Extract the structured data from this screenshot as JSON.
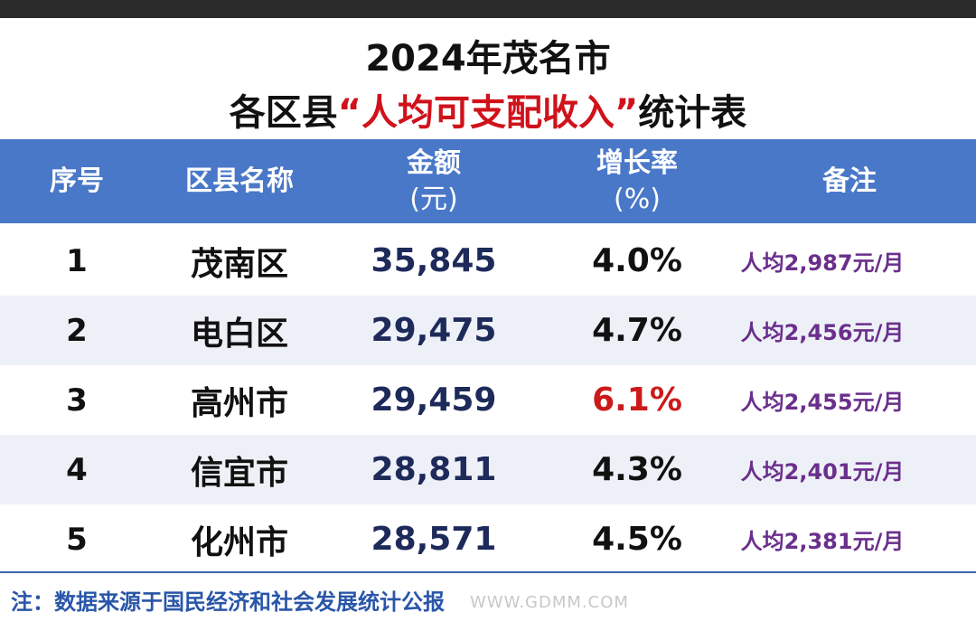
{
  "title": {
    "line1": "2024年茂名市",
    "line2_pre": "各区县",
    "line2_highlight": "“人均可支配收入”",
    "line2_post": "统计表"
  },
  "headers": {
    "no": "序号",
    "name": "区县名称",
    "amount_line1": "金额",
    "amount_line2": "(元)",
    "rate_line1": "增长率",
    "rate_line2": "(%)",
    "note": "备注"
  },
  "rows": [
    {
      "no": "1",
      "name": "茂南区",
      "amount": "35,845",
      "rate": "4.0%",
      "note": "人均2,987元/月"
    },
    {
      "no": "2",
      "name": "电白区",
      "amount": "29,475",
      "rate": "4.7%",
      "note": "人均2,456元/月"
    },
    {
      "no": "3",
      "name": "高州市",
      "amount": "29,459",
      "rate": "6.1%",
      "note": "人均2,455元/月"
    },
    {
      "no": "4",
      "name": "信宜市",
      "amount": "28,811",
      "rate": "4.3%",
      "note": "人均2,401元/月"
    },
    {
      "no": "5",
      "name": "化州市",
      "amount": "28,571",
      "rate": "4.5%",
      "note": "人均2,381元/月"
    }
  ],
  "footnote": "注：数据来源于国民经济和社会发展统计公报",
  "watermark": "WWW.GDMM.COM",
  "colors": {
    "header_bg": "#4a78c8",
    "highlight_red": "#d0121b",
    "note_purple": "#6a2f8c",
    "amount_navy": "#1d2a5a"
  }
}
